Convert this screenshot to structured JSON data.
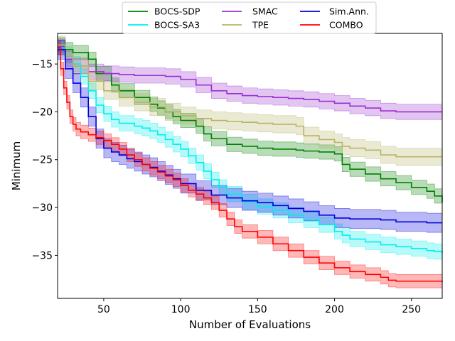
{
  "chart_data": {
    "type": "line",
    "title": "",
    "xlabel": "Number of Evaluations",
    "ylabel": "Minimum",
    "xlim": [
      20,
      270
    ],
    "ylim": [
      -39.5,
      -11.8
    ],
    "xticks": [
      50,
      100,
      150,
      200,
      250
    ],
    "yticks": [
      -15,
      -20,
      -25,
      -30,
      -35
    ],
    "xtick_labels": [
      "50",
      "100",
      "150",
      "200",
      "250"
    ],
    "ytick_labels": [
      "−15",
      "−20",
      "−25",
      "−30",
      "−35"
    ],
    "grid": false,
    "legend_position": "top-center, above plot",
    "series": [
      {
        "name": "BOCS-SDP",
        "color": "#008000",
        "x": [
          20,
          25,
          30,
          40,
          45,
          55,
          60,
          70,
          80,
          85,
          90,
          95,
          100,
          110,
          115,
          120,
          130,
          140,
          150,
          160,
          170,
          175,
          180,
          190,
          200,
          205,
          210,
          220,
          230,
          240,
          250,
          260,
          265,
          270
        ],
        "values": [
          -13.0,
          -13.5,
          -13.8,
          -14.5,
          -16.0,
          -17.2,
          -17.8,
          -18.5,
          -19.2,
          -19.6,
          -20.0,
          -20.5,
          -20.9,
          -21.5,
          -22.3,
          -22.8,
          -23.4,
          -23.6,
          -23.8,
          -23.9,
          -23.9,
          -24.0,
          -24.1,
          -24.2,
          -24.4,
          -25.5,
          -26.0,
          -26.5,
          -27.0,
          -27.4,
          -27.9,
          -28.3,
          -28.8,
          -29.5
        ],
        "band": 0.75
      },
      {
        "name": "BOCS-SA3",
        "color": "#00eeee",
        "x": [
          20,
          25,
          30,
          35,
          40,
          45,
          50,
          55,
          60,
          70,
          75,
          80,
          85,
          90,
          95,
          100,
          105,
          110,
          115,
          120,
          125,
          130,
          140,
          150,
          160,
          170,
          180,
          190,
          200,
          205,
          210,
          220,
          230,
          240,
          250,
          260,
          265,
          270
        ],
        "values": [
          -13.3,
          -14.0,
          -15.0,
          -16.3,
          -17.8,
          -19.3,
          -20.2,
          -20.8,
          -21.2,
          -21.5,
          -21.7,
          -22.0,
          -22.4,
          -22.9,
          -23.4,
          -23.9,
          -24.6,
          -25.3,
          -26.2,
          -27.1,
          -27.9,
          -28.6,
          -29.4,
          -29.9,
          -30.3,
          -30.8,
          -31.3,
          -31.8,
          -32.5,
          -32.9,
          -33.3,
          -33.6,
          -33.9,
          -34.1,
          -34.3,
          -34.5,
          -34.6,
          -34.8
        ],
        "band": 0.8
      },
      {
        "name": "SMAC",
        "color": "#9a2fd0",
        "x": [
          20,
          25,
          30,
          40,
          50,
          60,
          70,
          80,
          90,
          100,
          110,
          120,
          130,
          140,
          150,
          160,
          170,
          180,
          190,
          200,
          210,
          220,
          230,
          240,
          250,
          260,
          270
        ],
        "values": [
          -13.2,
          -14.5,
          -15.2,
          -15.8,
          -16.0,
          -16.1,
          -16.2,
          -16.2,
          -16.3,
          -16.6,
          -17.2,
          -17.8,
          -18.1,
          -18.3,
          -18.4,
          -18.5,
          -18.6,
          -18.7,
          -18.9,
          -19.1,
          -19.4,
          -19.6,
          -19.9,
          -20.0,
          -20.0,
          -20.0,
          -20.0
        ],
        "band": 0.8
      },
      {
        "name": "TPE",
        "color": "#b5b564",
        "x": [
          20,
          25,
          30,
          40,
          50,
          60,
          70,
          80,
          90,
          100,
          110,
          120,
          130,
          140,
          150,
          160,
          170,
          175,
          180,
          190,
          200,
          205,
          210,
          220,
          230,
          240,
          250,
          260,
          270
        ],
        "values": [
          -13.0,
          -14.0,
          -15.2,
          -16.8,
          -17.8,
          -18.5,
          -19.0,
          -19.5,
          -20.0,
          -20.4,
          -20.7,
          -20.9,
          -21.0,
          -21.1,
          -21.2,
          -21.3,
          -21.3,
          -21.5,
          -22.5,
          -22.9,
          -23.2,
          -23.6,
          -23.8,
          -24.0,
          -24.5,
          -24.7,
          -24.7,
          -24.7,
          -24.7
        ],
        "band": 0.9
      },
      {
        "name": "Sim.Ann.",
        "color": "#0000dd",
        "x": [
          20,
          25,
          30,
          35,
          40,
          45,
          50,
          55,
          60,
          65,
          70,
          75,
          80,
          85,
          90,
          95,
          100,
          110,
          120,
          130,
          140,
          150,
          160,
          170,
          180,
          190,
          200,
          210,
          220,
          230,
          240,
          250,
          260,
          270
        ],
        "values": [
          -13.5,
          -15.5,
          -17.0,
          -18.5,
          -20.5,
          -22.8,
          -23.8,
          -24.2,
          -24.5,
          -24.9,
          -25.2,
          -25.5,
          -25.8,
          -26.2,
          -26.6,
          -27.0,
          -27.5,
          -28.2,
          -28.7,
          -29.0,
          -29.3,
          -29.5,
          -29.8,
          -30.1,
          -30.4,
          -30.8,
          -31.1,
          -31.2,
          -31.2,
          -31.3,
          -31.5,
          -31.5,
          -31.6,
          -31.6
        ],
        "band": 1.0
      },
      {
        "name": "COMBO",
        "color": "#ff0000",
        "x": [
          20,
          22,
          24,
          26,
          28,
          30,
          32,
          35,
          40,
          45,
          50,
          55,
          60,
          65,
          70,
          75,
          80,
          85,
          90,
          95,
          100,
          105,
          110,
          115,
          120,
          125,
          130,
          135,
          140,
          150,
          160,
          170,
          180,
          190,
          200,
          210,
          220,
          230,
          235,
          240,
          250,
          260,
          270
        ],
        "values": [
          -13.3,
          -15.5,
          -17.5,
          -19.0,
          -20.5,
          -21.3,
          -21.8,
          -22.1,
          -22.4,
          -22.7,
          -23.0,
          -23.4,
          -23.9,
          -24.5,
          -25.0,
          -25.5,
          -25.9,
          -26.3,
          -26.7,
          -27.1,
          -27.7,
          -28.2,
          -28.6,
          -29.0,
          -29.5,
          -30.3,
          -31.2,
          -32.0,
          -32.5,
          -33.1,
          -33.8,
          -34.5,
          -35.2,
          -35.8,
          -36.3,
          -36.7,
          -37.0,
          -37.3,
          -37.6,
          -37.7,
          -37.7,
          -37.7,
          -37.8
        ],
        "band": 0.7
      }
    ]
  }
}
